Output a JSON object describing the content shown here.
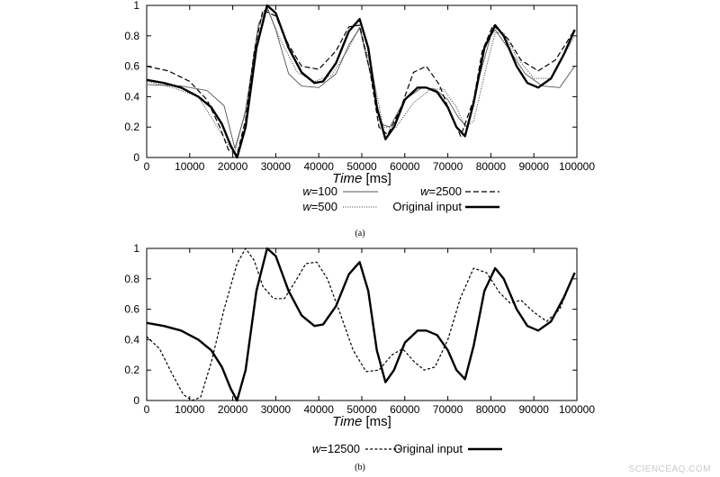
{
  "chart_data": [
    {
      "type": "line",
      "caption": "(a)",
      "xlabel": "Time",
      "xlabel_unit": "[ms]",
      "ylabel": "",
      "xlim": [
        0,
        100000
      ],
      "ylim": [
        0,
        1
      ],
      "xticks": [
        0,
        10000,
        20000,
        30000,
        40000,
        50000,
        60000,
        70000,
        80000,
        90000,
        100000
      ],
      "yticks": [
        0,
        0.2,
        0.4,
        0.6,
        0.8,
        1
      ],
      "grid": false,
      "legend_position": "bottom",
      "series": [
        {
          "name": "w=100",
          "prefix": "w",
          "suffix": "=100",
          "style": "thin",
          "color": "#555555",
          "x": [
            0,
            8000,
            14000,
            18000,
            20500,
            23000,
            26000,
            28000,
            30000,
            33000,
            36000,
            40000,
            44000,
            47000,
            49500,
            52000,
            54500,
            56500,
            60000,
            64000,
            67000,
            70000,
            72500,
            74500,
            77000,
            80000,
            81000,
            84000,
            88000,
            92000,
            96000,
            99500
          ],
          "y": [
            0.48,
            0.47,
            0.44,
            0.34,
            0.06,
            0.3,
            0.88,
            0.99,
            0.84,
            0.55,
            0.47,
            0.46,
            0.55,
            0.74,
            0.85,
            0.55,
            0.22,
            0.2,
            0.38,
            0.46,
            0.45,
            0.38,
            0.26,
            0.2,
            0.5,
            0.8,
            0.84,
            0.72,
            0.55,
            0.47,
            0.46,
            0.6
          ]
        },
        {
          "name": "w=500",
          "prefix": "w",
          "suffix": "=500",
          "style": "dotted",
          "color": "#333333",
          "x": [
            0,
            6000,
            12000,
            16000,
            19000,
            20500,
            23000,
            26000,
            28000,
            31000,
            35000,
            39000,
            43000,
            47000,
            49500,
            52500,
            55000,
            58000,
            62000,
            66000,
            69000,
            72000,
            74000,
            76000,
            79000,
            81000,
            83000,
            86000,
            90000,
            94000,
            99500
          ],
          "y": [
            0.5,
            0.46,
            0.4,
            0.22,
            0.08,
            0.03,
            0.32,
            0.86,
            0.98,
            0.78,
            0.56,
            0.5,
            0.54,
            0.72,
            0.86,
            0.55,
            0.2,
            0.2,
            0.36,
            0.45,
            0.45,
            0.33,
            0.2,
            0.24,
            0.6,
            0.82,
            0.82,
            0.66,
            0.52,
            0.52,
            0.8
          ]
        },
        {
          "name": "w=2500",
          "prefix": "w",
          "suffix": "=2500",
          "style": "dashed",
          "color": "#000000",
          "x": [
            0,
            5000,
            10000,
            14000,
            17000,
            19000,
            21000,
            23000,
            25000,
            27000,
            30000,
            33000,
            36000,
            40000,
            44000,
            47000,
            49500,
            52000,
            54000,
            56000,
            59000,
            62000,
            65000,
            68000,
            71000,
            73000,
            76000,
            78000,
            80500,
            84000,
            87000,
            91000,
            95000,
            99500
          ],
          "y": [
            0.6,
            0.57,
            0.5,
            0.38,
            0.2,
            0.05,
            0.02,
            0.25,
            0.7,
            0.97,
            0.93,
            0.74,
            0.6,
            0.58,
            0.7,
            0.86,
            0.87,
            0.55,
            0.2,
            0.15,
            0.32,
            0.56,
            0.6,
            0.48,
            0.26,
            0.14,
            0.38,
            0.7,
            0.87,
            0.78,
            0.64,
            0.57,
            0.64,
            0.84
          ]
        },
        {
          "name": "Original input",
          "prefix": "",
          "suffix": "Original input",
          "style": "solid",
          "color": "#000000",
          "x": [
            0,
            4000,
            8000,
            12000,
            15000,
            17500,
            19500,
            21000,
            23000,
            25500,
            28000,
            30000,
            33000,
            36000,
            39000,
            41000,
            44000,
            47000,
            49500,
            51500,
            53500,
            55500,
            57500,
            60000,
            63000,
            65000,
            67500,
            70000,
            72000,
            74000,
            76000,
            78500,
            81000,
            83000,
            86000,
            88500,
            91000,
            94000,
            97000,
            99500
          ],
          "y": [
            0.51,
            0.49,
            0.46,
            0.4,
            0.33,
            0.22,
            0.08,
            0.0,
            0.2,
            0.72,
            1.0,
            0.95,
            0.72,
            0.56,
            0.49,
            0.5,
            0.62,
            0.83,
            0.91,
            0.72,
            0.33,
            0.12,
            0.2,
            0.38,
            0.46,
            0.46,
            0.43,
            0.33,
            0.2,
            0.14,
            0.36,
            0.72,
            0.87,
            0.8,
            0.6,
            0.49,
            0.46,
            0.52,
            0.68,
            0.84
          ]
        }
      ]
    },
    {
      "type": "line",
      "caption": "(b)",
      "xlabel": "Time",
      "xlabel_unit": "[ms]",
      "ylabel": "",
      "xlim": [
        0,
        100000
      ],
      "ylim": [
        0,
        1
      ],
      "xticks": [
        0,
        10000,
        20000,
        30000,
        40000,
        50000,
        60000,
        70000,
        80000,
        90000,
        100000
      ],
      "yticks": [
        0,
        0.2,
        0.4,
        0.6,
        0.8,
        1
      ],
      "grid": false,
      "legend_position": "bottom",
      "series": [
        {
          "name": "w=12500",
          "prefix": "w",
          "suffix": "=12500",
          "style": "dashed-fine",
          "color": "#000000",
          "x": [
            0,
            3000,
            6000,
            8500,
            10500,
            12500,
            15000,
            18000,
            21000,
            23000,
            25000,
            27000,
            29500,
            32000,
            34500,
            37000,
            39500,
            42000,
            45000,
            48000,
            51000,
            54000,
            57000,
            59500,
            62000,
            64500,
            67000,
            70000,
            73000,
            76000,
            79000,
            82000,
            84500,
            87000,
            90000,
            93000,
            96000,
            99500
          ],
          "y": [
            0.42,
            0.34,
            0.17,
            0.04,
            0.0,
            0.02,
            0.25,
            0.6,
            0.9,
            1.0,
            0.92,
            0.75,
            0.67,
            0.67,
            0.78,
            0.9,
            0.91,
            0.8,
            0.57,
            0.33,
            0.19,
            0.2,
            0.3,
            0.34,
            0.26,
            0.2,
            0.22,
            0.4,
            0.68,
            0.87,
            0.84,
            0.71,
            0.64,
            0.66,
            0.58,
            0.52,
            0.6,
            0.84
          ]
        },
        {
          "name": "Original input",
          "prefix": "",
          "suffix": "Original input",
          "style": "solid",
          "color": "#000000",
          "x": [
            0,
            4000,
            8000,
            12000,
            15000,
            17500,
            19500,
            21000,
            23000,
            25500,
            28000,
            30000,
            33000,
            36000,
            39000,
            41000,
            44000,
            47000,
            49500,
            51500,
            53500,
            55500,
            57500,
            60000,
            63000,
            65000,
            67500,
            70000,
            72000,
            74000,
            76000,
            78500,
            81000,
            83000,
            86000,
            88500,
            91000,
            94000,
            97000,
            99500
          ],
          "y": [
            0.51,
            0.49,
            0.46,
            0.4,
            0.33,
            0.22,
            0.08,
            0.0,
            0.2,
            0.72,
            1.0,
            0.95,
            0.72,
            0.56,
            0.49,
            0.5,
            0.62,
            0.83,
            0.91,
            0.72,
            0.33,
            0.12,
            0.2,
            0.38,
            0.46,
            0.46,
            0.43,
            0.33,
            0.2,
            0.14,
            0.36,
            0.72,
            0.87,
            0.8,
            0.6,
            0.49,
            0.46,
            0.52,
            0.68,
            0.84
          ]
        }
      ]
    }
  ],
  "watermark": "SCIENCEAQ.COM"
}
